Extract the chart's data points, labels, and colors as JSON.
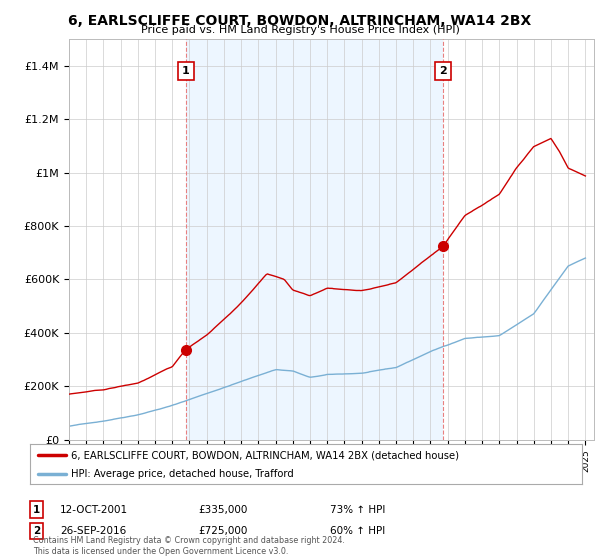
{
  "title": "6, EARLSCLIFFE COURT, BOWDON, ALTRINCHAM, WA14 2BX",
  "subtitle": "Price paid vs. HM Land Registry's House Price Index (HPI)",
  "ylim": [
    0,
    1500000
  ],
  "yticks": [
    0,
    200000,
    400000,
    600000,
    800000,
    1000000,
    1200000,
    1400000
  ],
  "ytick_labels": [
    "£0",
    "£200K",
    "£400K",
    "£600K",
    "£800K",
    "£1M",
    "£1.2M",
    "£1.4M"
  ],
  "xlim": [
    1995.0,
    2025.5
  ],
  "sale1_date": 2001.79,
  "sale1_price": 335000,
  "sale1_label": "1",
  "sale1_text": "12-OCT-2001",
  "sale1_amount": "£335,000",
  "sale1_hpi": "73% ↑ HPI",
  "sale2_date": 2016.74,
  "sale2_price": 725000,
  "sale2_label": "2",
  "sale2_text": "26-SEP-2016",
  "sale2_amount": "£725,000",
  "sale2_hpi": "60% ↑ HPI",
  "legend_property": "6, EARLSCLIFFE COURT, BOWDON, ALTRINCHAM, WA14 2BX (detached house)",
  "legend_hpi": "HPI: Average price, detached house, Trafford",
  "copyright": "Contains HM Land Registry data © Crown copyright and database right 2024.\nThis data is licensed under the Open Government Licence v3.0.",
  "property_color": "#cc0000",
  "hpi_color": "#7ab0d4",
  "vline_color": "#e88080",
  "background_color": "#ffffff",
  "grid_color": "#cccccc",
  "marker_box_color": "#cc0000",
  "shade_color": "#ddeeff"
}
